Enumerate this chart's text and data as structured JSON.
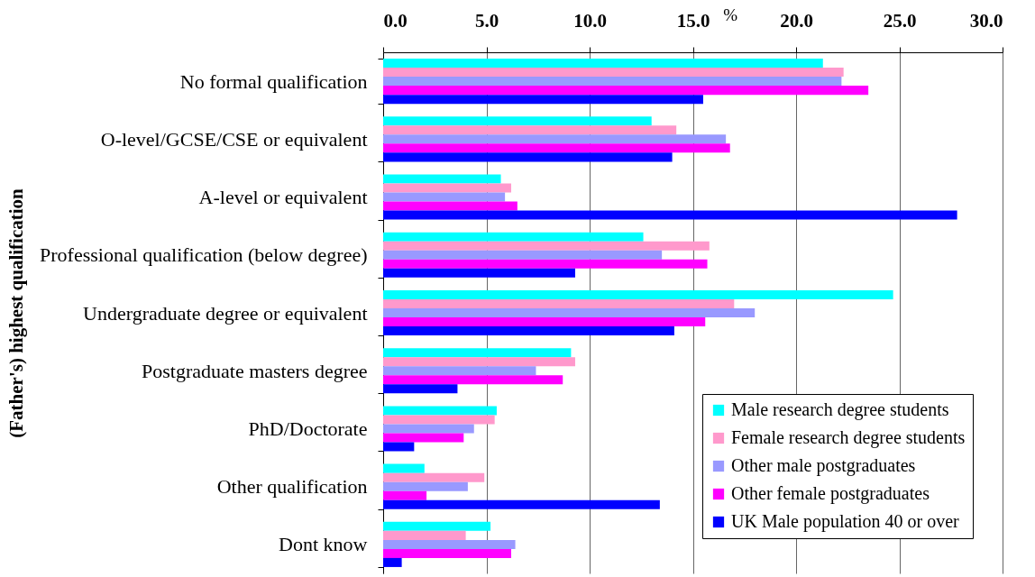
{
  "chart_data": {
    "type": "bar",
    "orientation": "horizontal",
    "xlabel": "%",
    "ylabel": "(Father's) highest qualification",
    "categories": [
      "No formal qualification",
      "O-level/GCSE/CSE or equivalent",
      "A-level or equivalent",
      "Professional qualification (below degree)",
      "Undergraduate degree or equivalent",
      "Postgraduate masters degree",
      "PhD/Doctorate",
      "Other qualification",
      "Dont know"
    ],
    "series": [
      {
        "name": "Male research degree students",
        "color": "#00ffff",
        "values": [
          21.3,
          13.0,
          5.7,
          12.6,
          24.7,
          9.1,
          5.5,
          2.0,
          5.2
        ]
      },
      {
        "name": "Female research degree students",
        "color": "#ff99cc",
        "values": [
          22.3,
          14.2,
          6.2,
          15.8,
          17.0,
          9.3,
          5.4,
          4.9,
          4.0
        ]
      },
      {
        "name": "Other male postgraduates",
        "color": "#9999ff",
        "values": [
          22.2,
          16.6,
          5.9,
          13.5,
          18.0,
          7.4,
          4.4,
          4.1,
          6.4
        ]
      },
      {
        "name": "Other female postgraduates",
        "color": "#ff00ff",
        "values": [
          23.5,
          16.8,
          6.5,
          15.7,
          15.6,
          8.7,
          3.9,
          2.1,
          6.2
        ]
      },
      {
        "name": "UK Male population 40 or over",
        "color": "#0000ff",
        "values": [
          15.5,
          14.0,
          27.8,
          9.3,
          14.1,
          3.6,
          1.5,
          13.4,
          0.9
        ]
      }
    ],
    "xlim": [
      0,
      30
    ],
    "xticks": [
      {
        "value": 0,
        "label": "0.0"
      },
      {
        "value": 5,
        "label": "5.0"
      },
      {
        "value": 10,
        "label": "10.0"
      },
      {
        "value": 15,
        "label": "15.0"
      },
      {
        "value": 20,
        "label": "20.0"
      },
      {
        "value": 25,
        "label": "25.0"
      },
      {
        "value": 30,
        "label": "30.0"
      }
    ],
    "grid": "x",
    "legend": "bottom right"
  }
}
